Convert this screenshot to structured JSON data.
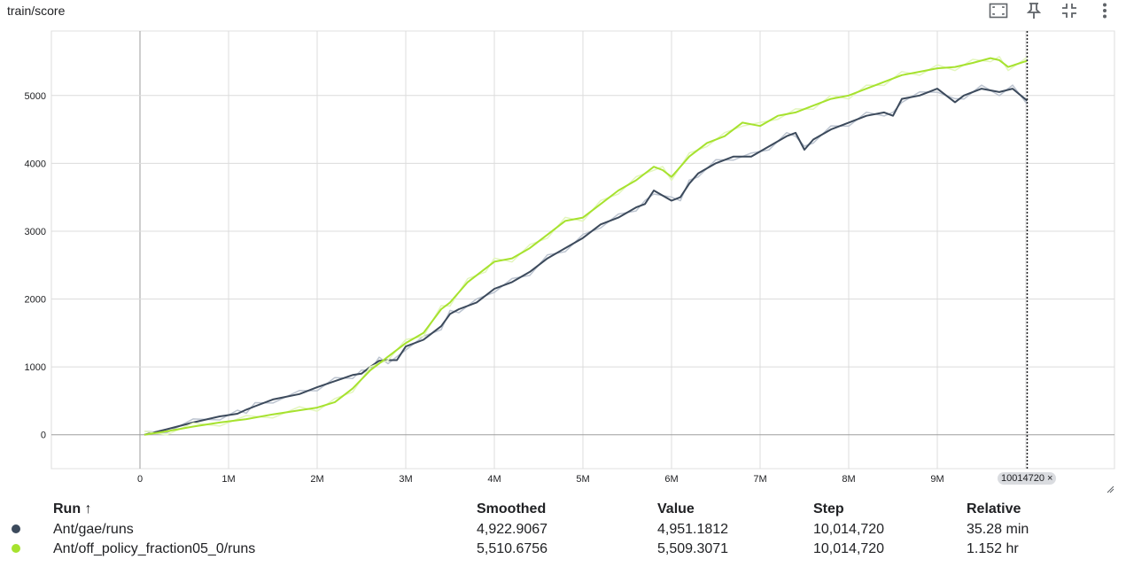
{
  "card": {
    "title": "train/score"
  },
  "toolbar": {
    "icons": [
      "fit-screen-icon",
      "pin-icon",
      "collapse-icon",
      "more-vert-icon"
    ]
  },
  "step_chip": {
    "label": "10014720 ×"
  },
  "legend": {
    "headers": {
      "run": "Run ↑",
      "smoothed": "Smoothed",
      "value": "Value",
      "step": "Step",
      "relative": "Relative"
    },
    "rows": [
      {
        "run": "Ant/gae/runs",
        "color": "#3c4a5c",
        "smoothed": "4,922.9067",
        "value": "4,951.1812",
        "step": "10,014,720",
        "relative": "35.28 min"
      },
      {
        "run": "Ant/off_policy_fraction05_0/runs",
        "color": "#a6e22e",
        "smoothed": "5,510.6756",
        "value": "5,509.3071",
        "step": "10,014,720",
        "relative": "1.152 hr"
      }
    ]
  },
  "chart_data": {
    "type": "line",
    "title": "train/score",
    "xlim": [
      -1000000,
      11000000
    ],
    "ylim": [
      -500,
      5950
    ],
    "x_ticks": [
      0,
      1000000,
      2000000,
      3000000,
      4000000,
      5000000,
      6000000,
      7000000,
      8000000,
      9000000
    ],
    "x_tick_labels": [
      "0",
      "1M",
      "2M",
      "3M",
      "4M",
      "5M",
      "6M",
      "7M",
      "8M",
      "9M"
    ],
    "y_ticks": [
      0,
      1000,
      2000,
      3000,
      4000,
      5000
    ],
    "y_tick_labels": [
      "0",
      "1000",
      "2000",
      "3000",
      "4000",
      "5000"
    ],
    "grid": true,
    "cursor_step": 10014720,
    "series": [
      {
        "name": "Ant/gae/runs",
        "color": "#3c4a5c",
        "raw_color": "#bcc4d0",
        "x": [
          50000,
          300000,
          600000,
          900000,
          1100000,
          1200000,
          1300000,
          1500000,
          1800000,
          2000000,
          2200000,
          2400000,
          2500000,
          2600000,
          2700000,
          2800000,
          2900000,
          3000000,
          3200000,
          3400000,
          3500000,
          3600000,
          3800000,
          4000000,
          4200000,
          4400000,
          4600000,
          4800000,
          5000000,
          5200000,
          5400000,
          5600000,
          5700000,
          5800000,
          6000000,
          6100000,
          6200000,
          6300000,
          6500000,
          6700000,
          6900000,
          7100000,
          7300000,
          7400000,
          7500000,
          7600000,
          7800000,
          8000000,
          8200000,
          8400000,
          8500000,
          8600000,
          8800000,
          9000000,
          9200000,
          9300000,
          9500000,
          9700000,
          9850000,
          10014720
        ],
        "y": [
          0,
          80,
          180,
          270,
          310,
          370,
          420,
          520,
          600,
          700,
          790,
          880,
          900,
          1000,
          1090,
          1100,
          1100,
          1300,
          1400,
          1600,
          1780,
          1850,
          1950,
          2150,
          2250,
          2400,
          2600,
          2750,
          2900,
          3100,
          3200,
          3350,
          3400,
          3600,
          3450,
          3500,
          3700,
          3850,
          4000,
          4100,
          4100,
          4250,
          4400,
          4450,
          4200,
          4350,
          4500,
          4600,
          4700,
          4750,
          4700,
          4950,
          5000,
          5100,
          4900,
          5000,
          5100,
          5050,
          5100,
          4922.9
        ]
      },
      {
        "name": "Ant/off_policy_fraction05_0/runs",
        "color": "#a6e22e",
        "raw_color": "#e3f6bd",
        "x": [
          50000,
          300000,
          600000,
          900000,
          1200000,
          1500000,
          1800000,
          2000000,
          2200000,
          2400000,
          2600000,
          2800000,
          3000000,
          3200000,
          3400000,
          3500000,
          3700000,
          3900000,
          4000000,
          4200000,
          4400000,
          4600000,
          4800000,
          5000000,
          5200000,
          5400000,
          5600000,
          5800000,
          5900000,
          6000000,
          6200000,
          6400000,
          6600000,
          6800000,
          7000000,
          7200000,
          7400000,
          7600000,
          7800000,
          8000000,
          8200000,
          8400000,
          8600000,
          8800000,
          9000000,
          9200000,
          9400000,
          9600000,
          9700000,
          9800000,
          10014720
        ],
        "y": [
          0,
          50,
          120,
          180,
          230,
          300,
          360,
          400,
          480,
          680,
          950,
          1150,
          1350,
          1500,
          1850,
          1950,
          2250,
          2450,
          2550,
          2600,
          2750,
          2950,
          3150,
          3200,
          3400,
          3600,
          3750,
          3950,
          3900,
          3800,
          4100,
          4300,
          4400,
          4600,
          4550,
          4700,
          4750,
          4850,
          4950,
          5000,
          5100,
          5200,
          5300,
          5350,
          5400,
          5420,
          5480,
          5550,
          5520,
          5420,
          5510.7
        ]
      }
    ]
  }
}
